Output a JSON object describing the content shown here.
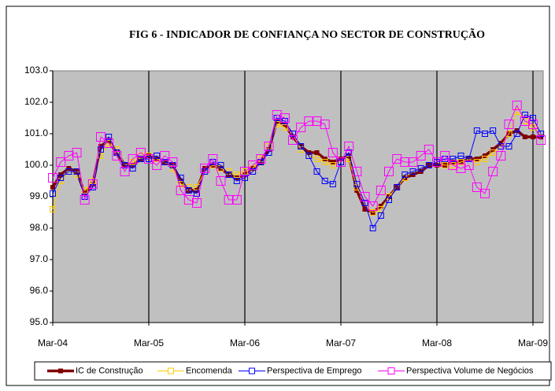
{
  "chart_data": {
    "type": "line",
    "title": "FIG 6 - INDICADOR DE CONFIANÇA NO SECTOR DE CONSTRUÇÃO",
    "categories": [
      "Mar-04",
      null,
      null,
      null,
      null,
      null,
      null,
      null,
      null,
      null,
      null,
      null,
      "Mar-05",
      null,
      null,
      null,
      null,
      null,
      null,
      null,
      null,
      null,
      null,
      null,
      "Mar-06",
      null,
      null,
      null,
      null,
      null,
      null,
      null,
      null,
      null,
      null,
      null,
      "Mar-07",
      null,
      null,
      null,
      null,
      null,
      null,
      null,
      null,
      null,
      null,
      null,
      "Mar-08",
      null,
      null,
      null,
      null,
      null,
      null,
      null,
      null,
      null,
      null,
      null,
      "Mar-09",
      null
    ],
    "series": [
      {
        "name": "IC de Construção",
        "color": "#800000",
        "values": [
          99.3,
          99.7,
          99.9,
          99.8,
          99.1,
          99.4,
          100.6,
          100.8,
          100.4,
          100.0,
          100.0,
          100.2,
          100.3,
          100.2,
          100.1,
          100.0,
          99.5,
          99.2,
          99.2,
          99.9,
          100.0,
          99.9,
          99.7,
          99.6,
          99.7,
          99.9,
          100.1,
          100.5,
          101.4,
          101.3,
          100.9,
          100.6,
          100.4,
          100.4,
          100.2,
          100.1,
          100.2,
          100.3,
          99.2,
          98.6,
          98.5,
          98.7,
          99.0,
          99.3,
          99.6,
          99.7,
          99.8,
          100.0,
          100.0,
          100.0,
          100.1,
          100.1,
          100.2,
          100.2,
          100.3,
          100.5,
          100.7,
          101.0,
          101.1,
          100.9,
          100.9,
          100.9
        ]
      },
      {
        "name": "Encomenda",
        "color": "#ffcc00",
        "values": [
          98.6,
          99.5,
          99.8,
          99.7,
          99.2,
          99.5,
          100.3,
          100.7,
          100.5,
          100.0,
          100.1,
          100.3,
          100.3,
          100.2,
          100.1,
          99.9,
          99.4,
          99.3,
          99.3,
          99.8,
          100.0,
          99.9,
          99.8,
          99.7,
          99.8,
          99.9,
          100.2,
          100.6,
          101.3,
          101.2,
          101.0,
          100.5,
          100.3,
          100.2,
          100.1,
          100.0,
          100.1,
          100.2,
          99.3,
          98.8,
          98.5,
          98.6,
          99.0,
          99.3,
          99.6,
          99.8,
          99.9,
          100.0,
          100.1,
          100.0,
          100.0,
          100.1,
          100.2,
          100.1,
          100.2,
          100.4,
          100.6,
          101.0,
          101.7,
          101.4,
          101.2,
          101.0
        ]
      },
      {
        "name": "Perspectiva de Emprego",
        "color": "#0000ff",
        "values": [
          99.1,
          99.6,
          99.8,
          99.8,
          99.0,
          99.3,
          100.5,
          100.9,
          100.4,
          100.0,
          99.9,
          100.2,
          100.2,
          100.3,
          100.1,
          100.0,
          99.6,
          99.2,
          99.1,
          99.8,
          100.1,
          100.0,
          99.7,
          99.5,
          99.6,
          99.8,
          100.1,
          100.4,
          101.5,
          101.4,
          101.0,
          100.6,
          100.3,
          99.8,
          99.5,
          99.4,
          100.1,
          100.4,
          99.4,
          98.8,
          98.0,
          98.4,
          98.9,
          99.3,
          99.7,
          99.8,
          99.9,
          100.0,
          100.1,
          100.2,
          100.2,
          100.3,
          100.2,
          101.1,
          101.0,
          101.1,
          100.6,
          100.6,
          101.0,
          101.6,
          101.5,
          101.0
        ]
      },
      {
        "name": "Perspectiva Volume de Negócios",
        "color": "#ff00ff",
        "values": [
          99.6,
          100.1,
          100.3,
          100.4,
          98.9,
          99.4,
          100.9,
          100.7,
          100.3,
          99.8,
          100.2,
          100.4,
          100.2,
          100.0,
          100.3,
          100.1,
          99.2,
          98.9,
          98.8,
          99.9,
          100.2,
          99.5,
          98.9,
          98.9,
          99.8,
          100.0,
          100.2,
          100.6,
          101.6,
          101.5,
          100.8,
          101.2,
          101.4,
          101.4,
          101.3,
          100.4,
          100.1,
          100.6,
          99.8,
          99.0,
          98.7,
          99.2,
          99.8,
          100.2,
          100.1,
          100.1,
          100.3,
          100.5,
          100.1,
          100.3,
          100.0,
          99.9,
          100.0,
          99.3,
          99.1,
          99.8,
          100.3,
          101.3,
          101.9,
          101.4,
          101.3,
          100.8
        ]
      }
    ],
    "ylim": [
      95,
      103
    ],
    "yticks": [
      {
        "value": 95,
        "label": "95.0"
      },
      {
        "value": 96,
        "label": "96.0"
      },
      {
        "value": 97,
        "label": "97.0"
      },
      {
        "value": 98,
        "label": "98.0"
      },
      {
        "value": 99,
        "label": "99.0"
      },
      {
        "value": 100,
        "label": "100.0"
      },
      {
        "value": 101,
        "label": "101.0"
      },
      {
        "value": 102,
        "label": "102.0"
      },
      {
        "value": 103,
        "label": "103.0"
      }
    ],
    "plot_background": "#c0c0c0",
    "x_grid": true,
    "legend": "bottom"
  }
}
